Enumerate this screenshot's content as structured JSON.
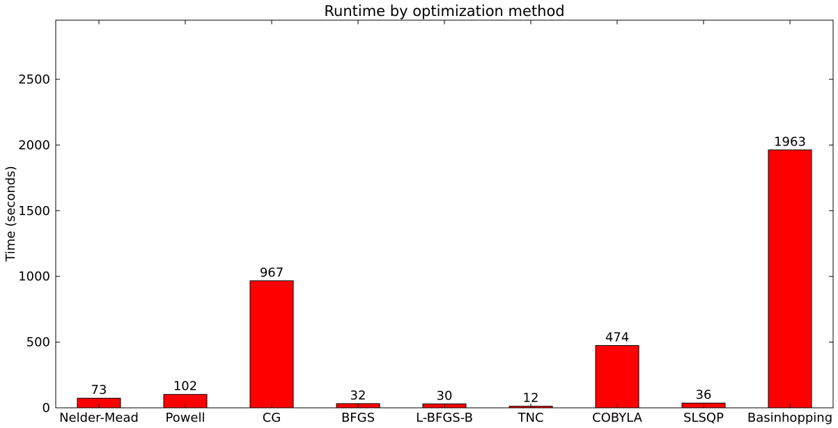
{
  "chart_data": {
    "type": "bar",
    "title": "Runtime by optimization method",
    "xlabel": "",
    "ylabel": "Time (seconds)",
    "categories": [
      "Nelder-Mead",
      "Powell",
      "CG",
      "BFGS",
      "L-BFGS-B",
      "TNC",
      "COBYLA",
      "SLSQP",
      "Basinhopping"
    ],
    "values": [
      73,
      102,
      967,
      32,
      30,
      12,
      474,
      36,
      1963
    ],
    "value_labels": [
      "73",
      "102",
      "967",
      "32",
      "30",
      "12",
      "474",
      "36",
      "1963"
    ],
    "ylim": [
      0,
      2950
    ],
    "yticks": [
      0,
      500,
      1000,
      1500,
      2000,
      2500
    ],
    "ytick_labels": [
      "0",
      "500",
      "1000",
      "1500",
      "2000",
      "2500"
    ],
    "bar_color": "#ff0000",
    "edge_color": "#000000",
    "grid": false,
    "legend": "none"
  }
}
